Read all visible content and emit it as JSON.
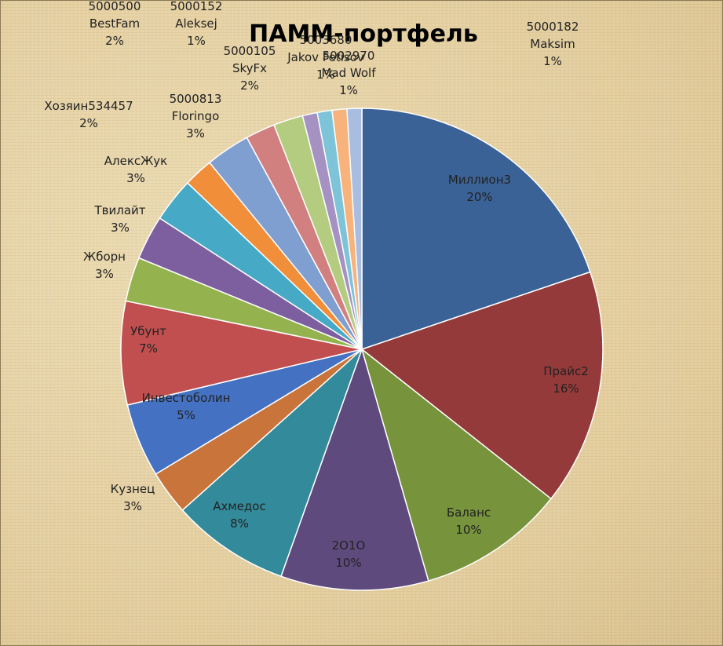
{
  "chart_data": {
    "type": "pie",
    "title": "ПАММ-портфель",
    "slices": [
      {
        "label": "Миллион3",
        "value": 20,
        "pct": "20%",
        "color": "#3b6296"
      },
      {
        "label": "Прайс2",
        "value": 16,
        "pct": "16%",
        "color": "#953a3a"
      },
      {
        "label": "Баланс",
        "value": 10,
        "pct": "10%",
        "color": "#77933c"
      },
      {
        "label": "2О1О",
        "value": 10,
        "pct": "10%",
        "color": "#5f4a7e"
      },
      {
        "label": "Ахмедос",
        "value": 8,
        "pct": "8%",
        "color": "#338a9b"
      },
      {
        "label": "Кузнец",
        "value": 3,
        "pct": "3%",
        "color": "#c8743a"
      },
      {
        "label": "Инвестоболин",
        "value": 5,
        "pct": "5%",
        "color": "#4471c1"
      },
      {
        "label": "Убунт",
        "value": 7,
        "pct": "7%",
        "color": "#c14f4f"
      },
      {
        "label": "Жборн",
        "value": 3,
        "pct": "3%",
        "color": "#94b24e"
      },
      {
        "label": "Твилайт",
        "value": 3,
        "pct": "3%",
        "color": "#7d5f9f"
      },
      {
        "label": "АлексЖук",
        "value": 3,
        "pct": "3%",
        "color": "#46aac6"
      },
      {
        "label": "Хозяин534457",
        "value": 2,
        "pct": "2%",
        "color": "#f08e3a"
      },
      {
        "label": "5000813 Floringo",
        "value": 3,
        "pct": "3%",
        "color": "#7f9fd1"
      },
      {
        "label": "5000500 BestFam",
        "value": 2,
        "pct": "2%",
        "color": "#d27f7f"
      },
      {
        "label": "5000105 SkyFx",
        "value": 2,
        "pct": "2%",
        "color": "#b3cc80"
      },
      {
        "label": "5000152 Aleksej",
        "value": 1,
        "pct": "1%",
        "color": "#a592c3"
      },
      {
        "label": "5003680 Jakov Fetisov",
        "value": 1,
        "pct": "1%",
        "color": "#7dc4d8"
      },
      {
        "label": "5002970 Mad Wolf",
        "value": 1,
        "pct": "1%",
        "color": "#f8b27b"
      },
      {
        "label": "5000182 Maksim",
        "value": 1,
        "pct": "1%",
        "color": "#a8bde0"
      }
    ]
  }
}
